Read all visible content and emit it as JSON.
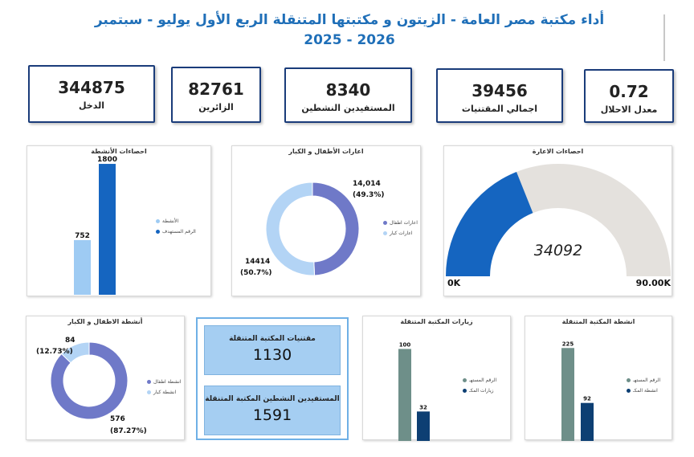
{
  "header": {
    "title_line1": "أداء مكتبة مصر العامة - الزيتون و مكتبتها المتنقلة الربع الأول يوليو - سبتمبر",
    "title_line2": "2025 - 2026"
  },
  "kpis": [
    {
      "value": "344875",
      "label": "الدخل"
    },
    {
      "value": "82761",
      "label": "الزائرين"
    },
    {
      "value": "8340",
      "label": "المستفيدين النشطين"
    },
    {
      "value": "39456",
      "label": "اجمالي المقتنيات"
    },
    {
      "value": "0.72",
      "label": "معدل الاحلال"
    }
  ],
  "colors": {
    "dark_blue": "#1565c0",
    "light_blue": "#9ecbf3",
    "purple": "#6f79c8",
    "light_purple": "#b3d4f5",
    "teal": "#6e8f89",
    "navy": "#0d3f73",
    "gauge_bg": "#e4e1dd"
  },
  "mobile": {
    "collections_label": "مقتنيات المكتبة المتنقلة",
    "collections_value": "1130",
    "active_label": "المستفيدين النشطين المكتبة المتنقلة",
    "active_value": "1591"
  },
  "chart_data": [
    {
      "type": "bar",
      "title": "احصاءات الأنشطة",
      "categories": [
        "الأنشطة",
        "الرقم المستهدف"
      ],
      "values": [
        752,
        1800
      ],
      "value_labels": [
        "752",
        "1800"
      ],
      "legend": [
        "الأنشطة",
        "الرقم المستهدف"
      ],
      "ylim": [
        0,
        1900
      ]
    },
    {
      "type": "pie",
      "title": "اعارات الأطفال و الكبار",
      "legend": [
        "اعارات اطفال",
        "اعارات كبار"
      ],
      "values": [
        14014,
        14414
      ],
      "labels": [
        "14,014",
        "14414"
      ],
      "percents": [
        "(49.3%)",
        "(50.7%)"
      ]
    },
    {
      "type": "gauge",
      "title": "احصاءات الاعارة",
      "value": 34092,
      "value_label": "34092",
      "min": 0,
      "max": 90000,
      "min_label": "0K",
      "max_label": "90.00K"
    },
    {
      "type": "pie",
      "title": "أنشطة الاطفال و الكبار",
      "legend": [
        "انشطة اطفال",
        "انشطة كبار"
      ],
      "values": [
        576,
        84
      ],
      "labels": [
        "576",
        "84"
      ],
      "percents": [
        "(87.27%)",
        "(12.73%)"
      ]
    },
    {
      "type": "bar",
      "title": "زيارات المكتبة المتنقلة",
      "categories": [
        "الرقم المستهـ",
        "زيارات المكـ"
      ],
      "values": [
        100,
        32
      ],
      "value_labels": [
        "100",
        "32"
      ],
      "legend": [
        "الرقم المستهـ",
        "زيارات المكـ"
      ],
      "ylim": [
        0,
        110
      ]
    },
    {
      "type": "bar",
      "title": "انشطة المكتبة المتنقلة",
      "categories": [
        "الرقم المستهـ",
        "انشطة المكـ"
      ],
      "values": [
        225,
        92
      ],
      "value_labels": [
        "225",
        "92"
      ],
      "legend": [
        "الرقم المستهـ",
        "انشطة المكـ"
      ],
      "ylim": [
        0,
        245
      ]
    }
  ]
}
